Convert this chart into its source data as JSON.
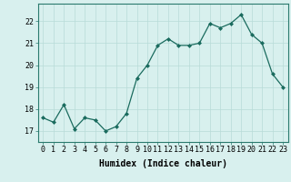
{
  "x": [
    0,
    1,
    2,
    3,
    4,
    5,
    6,
    7,
    8,
    9,
    10,
    11,
    12,
    13,
    14,
    15,
    16,
    17,
    18,
    19,
    20,
    21,
    22,
    23
  ],
  "y": [
    17.6,
    17.4,
    18.2,
    17.1,
    17.6,
    17.5,
    17.0,
    17.2,
    17.8,
    19.4,
    20.0,
    20.9,
    21.2,
    20.9,
    20.9,
    21.0,
    21.9,
    21.7,
    21.9,
    22.3,
    21.4,
    21.0,
    19.6,
    19.0
  ],
  "line_color": "#1a6b5e",
  "marker_color": "#1a6b5e",
  "bg_color": "#d8f0ee",
  "grid_color": "#b8dbd8",
  "xlabel": "Humidex (Indice chaleur)",
  "xlabel_fontsize": 7,
  "tick_fontsize": 6,
  "ylim": [
    16.5,
    22.8
  ],
  "yticks": [
    17,
    18,
    19,
    20,
    21,
    22
  ],
  "xlim": [
    -0.5,
    23.5
  ]
}
